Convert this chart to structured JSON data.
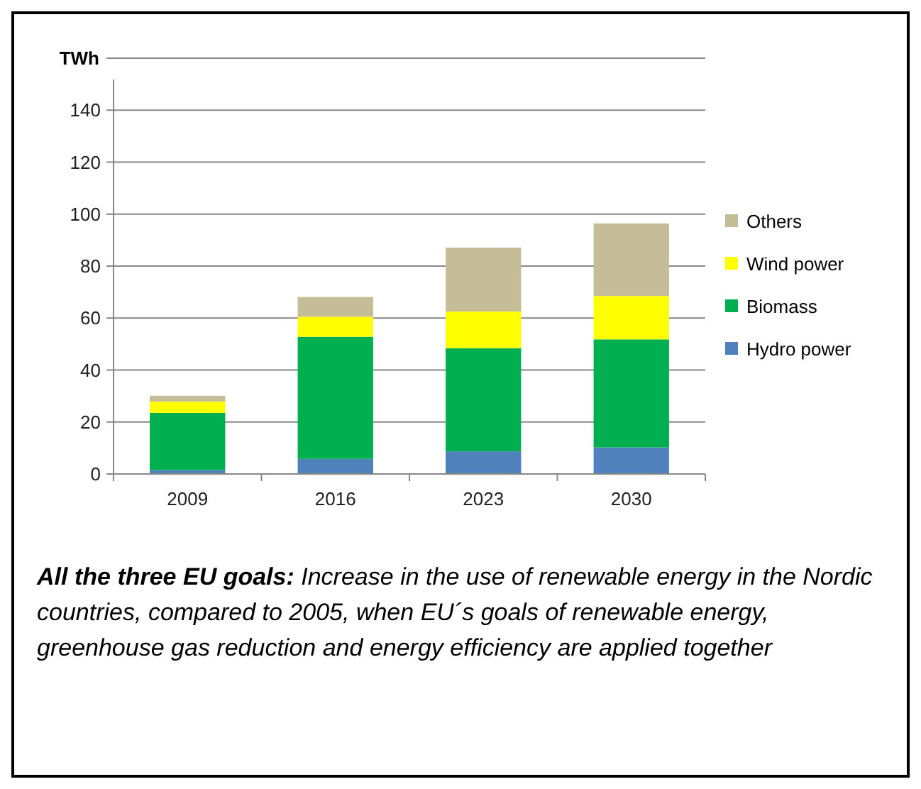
{
  "chart_data": {
    "type": "bar",
    "stacked": true,
    "ylabel": "TWh",
    "categories": [
      "2009",
      "2016",
      "2023",
      "2030"
    ],
    "series": [
      {
        "name": "Hydro power",
        "color": "#4f81bd",
        "values": [
          1.5,
          5.8,
          8.7,
          10.2
        ]
      },
      {
        "name": "Biomass",
        "color": "#00b050",
        "values": [
          22,
          47,
          39.7,
          41.6
        ]
      },
      {
        "name": "Wind power",
        "color": "#ffff00",
        "values": [
          4.4,
          7.7,
          14.1,
          16.7
        ]
      },
      {
        "name": "Others",
        "color": "#c4bd97",
        "values": [
          2.2,
          7.6,
          24.6,
          27.9
        ]
      }
    ],
    "ylim": [
      0,
      160
    ],
    "yticks": [
      0,
      20,
      40,
      60,
      80,
      100,
      120,
      140,
      {
        "value": 160,
        "label": null
      }
    ],
    "grid": "y",
    "legend": "right",
    "annotations": [
      "All the three EU goals: Increase in the use of renewable energy in the Nordic countries, compared to 2005, when EU´s goals of renewable energy, greenhouse gas reduction and energy efficiency are applied together"
    ]
  }
}
